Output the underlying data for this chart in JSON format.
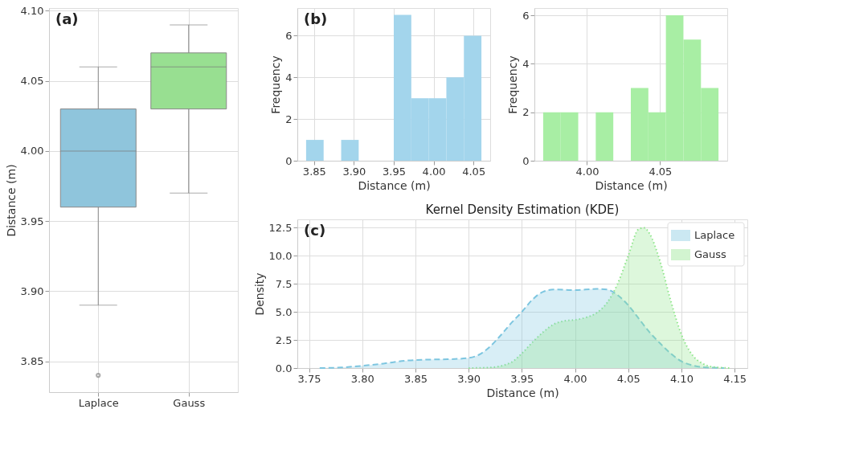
{
  "chart_data": [
    {
      "type": "box",
      "ylabel": "Distance (m)",
      "categories": [
        "Laplace",
        "Gauss"
      ],
      "colors": [
        "#8fc5dc",
        "#98df91"
      ],
      "boxes": [
        {
          "low": 3.89,
          "q1": 3.96,
          "median": 4.0,
          "q3": 4.03,
          "high": 4.06,
          "outliers": [
            3.84
          ]
        },
        {
          "low": 3.97,
          "q1": 4.03,
          "median": 4.06,
          "q3": 4.07,
          "high": 4.09
        }
      ],
      "ylim": [
        3.828,
        4.102
      ],
      "yticks": [
        3.85,
        {
          "value": 3.9,
          "label": "3.90"
        },
        3.95,
        {
          "value": 4.0,
          "label": "4.00"
        },
        4.05,
        {
          "value": 4.1,
          "label": "4.10"
        }
      ],
      "grid": true,
      "annotations": [
        "(a)"
      ]
    },
    {
      "type": "histogram",
      "xlabel": "Distance (m)",
      "ylabel": "Frequency",
      "color": "#a3d5ec",
      "bins": [
        3.84,
        3.862,
        3.884,
        3.906,
        3.928,
        3.95,
        3.972,
        3.994,
        4.016,
        4.038,
        4.06
      ],
      "values": [
        1,
        0,
        1,
        0,
        0,
        7,
        3,
        3,
        4,
        6
      ],
      "xlim": [
        3.829,
        4.071
      ],
      "xticks": [
        3.85,
        {
          "value": 3.9,
          "label": "3.90"
        },
        3.95,
        {
          "value": 4.0,
          "label": "4.00"
        },
        4.05
      ],
      "ylim": [
        0,
        7.33
      ],
      "yticks": [
        0,
        2,
        4,
        6
      ],
      "grid": true,
      "annotations": [
        "(b)"
      ]
    },
    {
      "type": "histogram",
      "xlabel": "Distance (m)",
      "ylabel": "Frequency",
      "color": "#a8eea4",
      "bins": [
        3.97,
        3.982,
        3.994,
        4.006,
        4.018,
        4.03,
        4.042,
        4.054,
        4.066,
        4.078,
        4.09
      ],
      "values": [
        2,
        2,
        0,
        2,
        0,
        3,
        2,
        6,
        5,
        3
      ],
      "xlim": [
        3.964,
        4.096
      ],
      "xticks": [
        {
          "value": 4.0,
          "label": "4.00"
        },
        4.05
      ],
      "ylim": [
        0,
        6.3
      ],
      "yticks": [
        0,
        2,
        4,
        6
      ],
      "grid": true
    },
    {
      "type": "area",
      "title": "Kernel Density Estimation (KDE)",
      "xlabel": "Distance (m)",
      "ylabel": "Density",
      "series": [
        {
          "name": "Laplace",
          "color": "#7ec6e0",
          "line_style": "dashed",
          "x": [
            3.76,
            3.78,
            3.8,
            3.82,
            3.84,
            3.86,
            3.88,
            3.9,
            3.91,
            3.92,
            3.93,
            3.94,
            3.95,
            3.96,
            3.97,
            3.98,
            4.0,
            4.02,
            4.03,
            4.04,
            4.05,
            4.06,
            4.07,
            4.08,
            4.09,
            4.1,
            4.11,
            4.12,
            4.14
          ],
          "values": [
            0,
            0.05,
            0.2,
            0.4,
            0.65,
            0.75,
            0.78,
            0.9,
            1.2,
            1.9,
            2.9,
            4.0,
            5.0,
            6.1,
            6.8,
            7.0,
            6.95,
            7.05,
            7.0,
            6.5,
            5.6,
            4.4,
            3.2,
            2.2,
            1.3,
            0.6,
            0.25,
            0.08,
            0
          ]
        },
        {
          "name": "Gauss",
          "color": "#90e68c",
          "line_style": "dotted",
          "x": [
            3.9,
            3.92,
            3.94,
            3.95,
            3.96,
            3.97,
            3.98,
            3.99,
            4.0,
            4.01,
            4.02,
            4.03,
            4.04,
            4.05,
            4.06,
            4.065,
            4.07,
            4.08,
            4.09,
            4.1,
            4.11,
            4.12,
            4.13,
            4.145
          ],
          "values": [
            0,
            0.05,
            0.5,
            1.3,
            2.3,
            3.2,
            3.9,
            4.2,
            4.3,
            4.5,
            4.9,
            5.8,
            7.5,
            10.0,
            12.4,
            12.5,
            12.0,
            9.5,
            6.0,
            3.0,
            1.2,
            0.4,
            0.1,
            0
          ]
        }
      ],
      "xlim": [
        3.739,
        4.162
      ],
      "xticks": [
        3.75,
        {
          "value": 3.8,
          "label": "3.80"
        },
        3.85,
        {
          "value": 3.9,
          "label": "3.90"
        },
        3.95,
        {
          "value": 4.0,
          "label": "4.00"
        },
        4.05,
        {
          "value": 4.1,
          "label": "4.10"
        },
        4.15
      ],
      "ylim": [
        0,
        13.25
      ],
      "yticks": [
        {
          "value": 0,
          "label": "0.0"
        },
        2.5,
        {
          "value": 5,
          "label": "5.0"
        },
        7.5,
        {
          "value": 10,
          "label": "10.0"
        },
        12.5
      ],
      "grid": true,
      "legend": "top right",
      "marker": "none",
      "annotations": [
        "(c)"
      ]
    }
  ]
}
